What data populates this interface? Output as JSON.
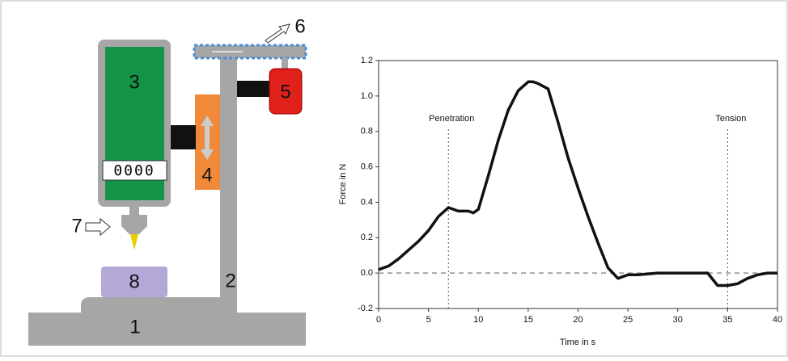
{
  "diagram": {
    "labels": [
      "1",
      "2",
      "3",
      "4",
      "5",
      "6",
      "7",
      "8"
    ],
    "display": "0000"
  },
  "chart_data": {
    "type": "line",
    "xlabel": "Time in s",
    "ylabel": "Force in N",
    "x": [
      0,
      1,
      2,
      3,
      4,
      5,
      6,
      7,
      8,
      9,
      9.5,
      10,
      11,
      12,
      13,
      14,
      15,
      15.5,
      16,
      17,
      18,
      19,
      20,
      21,
      22,
      23,
      24,
      25,
      26,
      28,
      30,
      32,
      33,
      34,
      35,
      36,
      37,
      38,
      39,
      40
    ],
    "series": [
      {
        "color": "#111111",
        "values": [
          0.02,
          0.04,
          0.08,
          0.13,
          0.18,
          0.24,
          0.32,
          0.37,
          0.35,
          0.35,
          0.34,
          0.36,
          0.55,
          0.75,
          0.92,
          1.03,
          1.08,
          1.08,
          1.07,
          1.04,
          0.85,
          0.65,
          0.48,
          0.32,
          0.17,
          0.03,
          -0.03,
          -0.01,
          -0.01,
          0,
          0,
          0,
          0,
          -0.07,
          -0.07,
          -0.06,
          -0.03,
          -0.01,
          0,
          0
        ]
      }
    ],
    "xlim": [
      0,
      40
    ],
    "xticks": [
      0,
      5,
      10,
      15,
      20,
      25,
      30,
      35,
      40
    ],
    "ylim": [
      -0.2,
      1.2
    ],
    "yticks": [
      -0.2,
      {
        "value": 0,
        "label": "0.0"
      },
      0.2,
      0.4,
      0.6,
      0.8,
      {
        "value": 1,
        "label": "1.0"
      },
      1.2
    ],
    "annotations": [
      {
        "text": "Penetration",
        "x": 7
      },
      {
        "text": "Tension",
        "x": 35
      }
    ],
    "zero_line": true
  }
}
